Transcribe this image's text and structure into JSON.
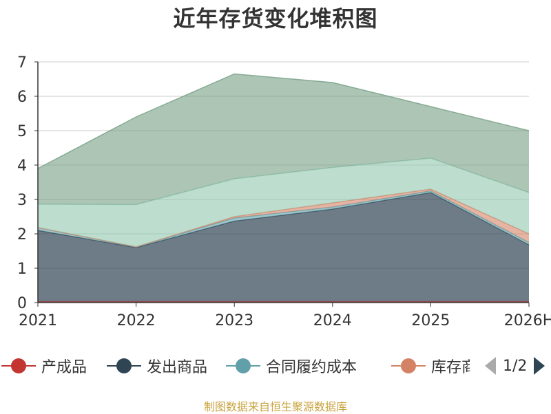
{
  "title": "近年存货变化堆积图",
  "source": "制图数据来自恒生聚源数据库",
  "legend": {
    "page_indicator": "1/2",
    "items": [
      {
        "name": "产成品",
        "color": "#c23531"
      },
      {
        "name": "发出商品",
        "color": "#2f4554"
      },
      {
        "name": "合同履约成本",
        "color": "#61a0a8"
      },
      {
        "name": "库存商品",
        "color": "#d48265"
      }
    ]
  },
  "chart_data": {
    "type": "area",
    "stacked": true,
    "categories": [
      "2021",
      "2022",
      "2023",
      "2024",
      "2025",
      "2026H"
    ],
    "ylim": [
      0,
      7
    ],
    "yticks": [
      0,
      1,
      2,
      3,
      4,
      5,
      6,
      7
    ],
    "grid": true,
    "series": [
      {
        "name": "产成品",
        "color": "#c23531",
        "values": [
          0.03,
          0.03,
          0.03,
          0.03,
          0.03,
          0.03
        ]
      },
      {
        "name": "发出商品",
        "color": "#2f4554",
        "values": [
          2.07,
          1.57,
          2.34,
          2.69,
          3.17,
          1.65
        ]
      },
      {
        "name": "合同履约成本",
        "color": "#61a0a8",
        "values": [
          0.08,
          0.02,
          0.09,
          0.06,
          0.05,
          0.07
        ]
      },
      {
        "name": "库存商品",
        "color": "#d48265",
        "values": [
          0.0,
          0.0,
          0.04,
          0.12,
          0.05,
          0.25
        ]
      },
      {
        "color": "#91c7ae",
        "values": [
          0.68,
          1.23,
          1.1,
          1.03,
          0.9,
          1.2
        ]
      },
      {
        "color": "#749f83",
        "values": [
          1.04,
          2.55,
          3.05,
          2.47,
          1.5,
          1.8
        ]
      }
    ]
  }
}
